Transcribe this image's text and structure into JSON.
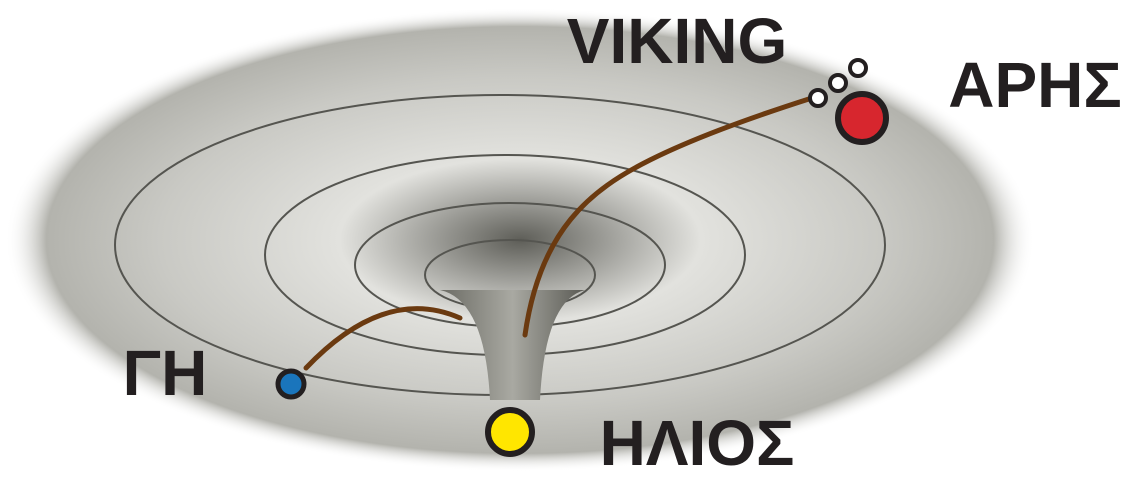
{
  "nodes": [
    {
      "label": "VIKING"
    },
    {
      "label": "ΑΡΗΣ"
    },
    {
      "label": "ΓΗ"
    },
    {
      "label": "ΗΛΙΟΣ"
    }
  ]
}
